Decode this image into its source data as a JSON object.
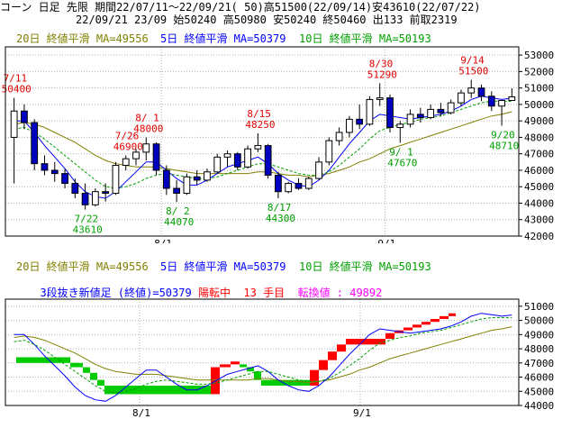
{
  "header": {
    "line1": "コーン 日足 先限 期間22/07/11～22/09/21( 50)高51500(22/09/14)安43610(22/07/22)",
    "line2": "22/09/21 23/09 始50240 高50980 安50240 終50460 出133 前取2319"
  },
  "colors": {
    "ma20": "#808000",
    "ma5": "#0000ff",
    "ma10": "#00a000",
    "up": "#ffffff",
    "down": "#0000c0",
    "high_label": "#e00000",
    "low_label": "#00a000",
    "pos_brick": "#ff0000",
    "neg_brick": "#00cc00",
    "info_blue": "#0000ff",
    "info_red": "#ff0000",
    "info_magenta": "#ff00ff"
  },
  "top_panel": {
    "legend": {
      "ma20": "20日 終値平滑 MA=49556",
      "ma5": "5日 終値平滑 MA=50379",
      "ma10": "10日 終値平滑 MA=50193"
    },
    "y_ticks": [
      "53000",
      "52000",
      "51000",
      "50000",
      "49000",
      "48000",
      "47000",
      "46000",
      "45000",
      "44000",
      "43000",
      "42000"
    ],
    "x_ticks": [
      "8/1",
      "9/1"
    ],
    "annotations": [
      {
        "date": "7/11",
        "value": "50400",
        "kind": "high"
      },
      {
        "date": "7/26",
        "value": "46900",
        "kind": "high"
      },
      {
        "date": "8/ 1",
        "value": "48000",
        "kind": "high"
      },
      {
        "date": "8/15",
        "value": "48250",
        "kind": "high"
      },
      {
        "date": "8/30",
        "value": "51290",
        "kind": "high"
      },
      {
        "date": "9/14",
        "value": "51500",
        "kind": "high"
      },
      {
        "date": "7/22",
        "value": "43610",
        "kind": "low"
      },
      {
        "date": "8/ 2",
        "value": "44070",
        "kind": "low"
      },
      {
        "date": "8/17",
        "value": "44300",
        "kind": "low"
      },
      {
        "date": "9/ 1",
        "value": "47670",
        "kind": "low"
      },
      {
        "date": "9/20",
        "value": "48710",
        "kind": "low"
      }
    ]
  },
  "bottom_panel": {
    "legend": {
      "ma20": "20日 終値平滑 MA=49556",
      "ma5": "5日 終値平滑 MA=50379",
      "ma10": "10日 終値平滑 MA=50193"
    },
    "info_label": "3段抜き新値足 (終値)=50379",
    "trend_label": "陽転中",
    "count_value": "13",
    "count_label": "手目",
    "switch_label": "転換値 : 49892",
    "y_ticks": [
      "51000",
      "50000",
      "49000",
      "48000",
      "47000",
      "46000",
      "45000",
      "44000"
    ],
    "x_ticks": [
      "8/1",
      "9/1"
    ]
  },
  "chart_data": [
    {
      "type": "candlestick",
      "title": "",
      "ylim": [
        42000,
        53500
      ],
      "x_tick_labels": [
        "8/1",
        "9/1"
      ],
      "candles": [
        {
          "o": 48000,
          "h": 50400,
          "l": 45200,
          "c": 49600
        },
        {
          "o": 49600,
          "h": 50000,
          "l": 48500,
          "c": 48900
        },
        {
          "o": 48900,
          "h": 49100,
          "l": 46000,
          "c": 46400
        },
        {
          "o": 46400,
          "h": 46900,
          "l": 45700,
          "c": 46000
        },
        {
          "o": 46000,
          "h": 46500,
          "l": 45300,
          "c": 45800
        },
        {
          "o": 45800,
          "h": 46100,
          "l": 44900,
          "c": 45200
        },
        {
          "o": 45200,
          "h": 45500,
          "l": 44300,
          "c": 44600
        },
        {
          "o": 44600,
          "h": 45200,
          "l": 43610,
          "c": 43900
        },
        {
          "o": 43900,
          "h": 44900,
          "l": 43800,
          "c": 44700
        },
        {
          "o": 44700,
          "h": 45200,
          "l": 44100,
          "c": 44600
        },
        {
          "o": 44600,
          "h": 46500,
          "l": 44500,
          "c": 46300
        },
        {
          "o": 46300,
          "h": 46900,
          "l": 46000,
          "c": 46700
        },
        {
          "o": 46700,
          "h": 47300,
          "l": 46300,
          "c": 47100
        },
        {
          "o": 47100,
          "h": 48000,
          "l": 46600,
          "c": 47600
        },
        {
          "o": 47600,
          "h": 47700,
          "l": 45700,
          "c": 46000
        },
        {
          "o": 46000,
          "h": 46300,
          "l": 44500,
          "c": 44900
        },
        {
          "o": 44900,
          "h": 45400,
          "l": 44070,
          "c": 44600
        },
        {
          "o": 44600,
          "h": 45800,
          "l": 44500,
          "c": 45600
        },
        {
          "o": 45600,
          "h": 46000,
          "l": 45100,
          "c": 45400
        },
        {
          "o": 45400,
          "h": 46100,
          "l": 45300,
          "c": 45900
        },
        {
          "o": 45900,
          "h": 47000,
          "l": 45800,
          "c": 46800
        },
        {
          "o": 46800,
          "h": 47200,
          "l": 46200,
          "c": 47000
        },
        {
          "o": 47000,
          "h": 47100,
          "l": 46000,
          "c": 46200
        },
        {
          "o": 46200,
          "h": 47500,
          "l": 46100,
          "c": 47300
        },
        {
          "o": 47300,
          "h": 48250,
          "l": 47100,
          "c": 47500
        },
        {
          "o": 47500,
          "h": 47600,
          "l": 45500,
          "c": 45700
        },
        {
          "o": 45700,
          "h": 45900,
          "l": 44300,
          "c": 44700
        },
        {
          "o": 44700,
          "h": 45300,
          "l": 44600,
          "c": 45200
        },
        {
          "o": 45200,
          "h": 45500,
          "l": 44800,
          "c": 44900
        },
        {
          "o": 44900,
          "h": 45600,
          "l": 44800,
          "c": 45500
        },
        {
          "o": 45500,
          "h": 46800,
          "l": 45400,
          "c": 46500
        },
        {
          "o": 46500,
          "h": 48000,
          "l": 46300,
          "c": 47800
        },
        {
          "o": 47800,
          "h": 48600,
          "l": 47500,
          "c": 48300
        },
        {
          "o": 48300,
          "h": 49300,
          "l": 48000,
          "c": 49100
        },
        {
          "o": 49100,
          "h": 50000,
          "l": 48500,
          "c": 48800
        },
        {
          "o": 48800,
          "h": 50500,
          "l": 48700,
          "c": 50300
        },
        {
          "o": 50300,
          "h": 51290,
          "l": 49900,
          "c": 50400
        },
        {
          "o": 50400,
          "h": 50600,
          "l": 48300,
          "c": 48600
        },
        {
          "o": 48600,
          "h": 49000,
          "l": 47670,
          "c": 48800
        },
        {
          "o": 48800,
          "h": 49700,
          "l": 48600,
          "c": 49400
        },
        {
          "o": 49400,
          "h": 49800,
          "l": 48900,
          "c": 49200
        },
        {
          "o": 49200,
          "h": 50000,
          "l": 49100,
          "c": 49700
        },
        {
          "o": 49700,
          "h": 50100,
          "l": 49300,
          "c": 49500
        },
        {
          "o": 49500,
          "h": 50300,
          "l": 49400,
          "c": 50100
        },
        {
          "o": 50100,
          "h": 50900,
          "l": 49900,
          "c": 50700
        },
        {
          "o": 50700,
          "h": 51500,
          "l": 50400,
          "c": 51000
        },
        {
          "o": 51000,
          "h": 51200,
          "l": 50200,
          "c": 50500
        },
        {
          "o": 50500,
          "h": 50800,
          "l": 49600,
          "c": 49900
        },
        {
          "o": 49900,
          "h": 50200,
          "l": 48710,
          "c": 50240
        },
        {
          "o": 50240,
          "h": 50980,
          "l": 50240,
          "c": 50460
        }
      ],
      "series": [
        {
          "name": "20日 終値平滑",
          "values": [
            48800,
            48900,
            48800,
            48600,
            48300,
            48000,
            47700,
            47300,
            46900,
            46600,
            46400,
            46300,
            46200,
            46200,
            46200,
            46100,
            46000,
            45900,
            45800,
            45800,
            45800,
            45800,
            45800,
            45800,
            45900,
            45900,
            45800,
            45700,
            45700,
            45600,
            45700,
            45800,
            46000,
            46200,
            46500,
            46700,
            47000,
            47300,
            47500,
            47700,
            47900,
            48100,
            48300,
            48500,
            48700,
            48900,
            49100,
            49300,
            49400,
            49556
          ]
        },
        {
          "name": "5日 終値平滑",
          "values": [
            49000,
            49000,
            48300,
            47500,
            46800,
            46100,
            45300,
            44700,
            44400,
            44300,
            44700,
            45300,
            45900,
            46500,
            46500,
            46000,
            45500,
            45100,
            45100,
            45400,
            45800,
            46200,
            46400,
            46600,
            46800,
            46400,
            45800,
            45400,
            45100,
            45000,
            45400,
            46000,
            46800,
            47600,
            48300,
            49000,
            49400,
            49300,
            49200,
            49100,
            49200,
            49300,
            49400,
            49600,
            49900,
            50300,
            50500,
            50400,
            50300,
            50379
          ]
        },
        {
          "name": "10日 終値平滑",
          "values": [
            48500,
            48600,
            48300,
            47900,
            47400,
            46900,
            46400,
            45900,
            45400,
            45000,
            44900,
            45000,
            45200,
            45500,
            45700,
            45800,
            45700,
            45600,
            45500,
            45500,
            45600,
            45800,
            46000,
            46200,
            46400,
            46400,
            46200,
            46000,
            45800,
            45700,
            45700,
            45900,
            46300,
            46800,
            47300,
            47900,
            48400,
            48600,
            48800,
            48900,
            49100,
            49200,
            49300,
            49500,
            49700,
            49900,
            50100,
            50200,
            50200,
            50193
          ]
        }
      ]
    },
    {
      "type": "bar",
      "title": "",
      "ylim": [
        44000,
        51500
      ],
      "x_tick_labels": [
        "8/1",
        "9/1"
      ],
      "bricks": [
        {
          "low": 47000,
          "high": 47400,
          "dir": "down"
        },
        {
          "low": 46700,
          "high": 47000,
          "dir": "down"
        },
        {
          "low": 46300,
          "high": 46700,
          "dir": "down"
        },
        {
          "low": 45800,
          "high": 46300,
          "dir": "down"
        },
        {
          "low": 45400,
          "high": 45800,
          "dir": "down"
        },
        {
          "low": 44800,
          "high": 45400,
          "dir": "down"
        },
        {
          "low": 44800,
          "high": 46700,
          "dir": "up"
        },
        {
          "low": 46700,
          "high": 46900,
          "dir": "up"
        },
        {
          "low": 46900,
          "high": 47100,
          "dir": "up"
        },
        {
          "low": 46700,
          "high": 46900,
          "dir": "down"
        },
        {
          "low": 46400,
          "high": 46700,
          "dir": "down"
        },
        {
          "low": 45800,
          "high": 46400,
          "dir": "down"
        },
        {
          "low": 45400,
          "high": 45800,
          "dir": "down"
        },
        {
          "low": 45400,
          "high": 46500,
          "dir": "up"
        },
        {
          "low": 46500,
          "high": 47200,
          "dir": "up"
        },
        {
          "low": 47200,
          "high": 47800,
          "dir": "up"
        },
        {
          "low": 47800,
          "high": 48300,
          "dir": "up"
        },
        {
          "low": 48300,
          "high": 48700,
          "dir": "up"
        },
        {
          "low": 48700,
          "high": 49100,
          "dir": "up"
        },
        {
          "low": 49100,
          "high": 49300,
          "dir": "up"
        },
        {
          "low": 49300,
          "high": 49500,
          "dir": "up"
        },
        {
          "low": 49500,
          "high": 49700,
          "dir": "up"
        },
        {
          "low": 49700,
          "high": 49900,
          "dir": "up"
        },
        {
          "low": 49900,
          "high": 50100,
          "dir": "up"
        },
        {
          "low": 50100,
          "high": 50300,
          "dir": "up"
        },
        {
          "low": 50300,
          "high": 50500,
          "dir": "up"
        }
      ]
    }
  ]
}
